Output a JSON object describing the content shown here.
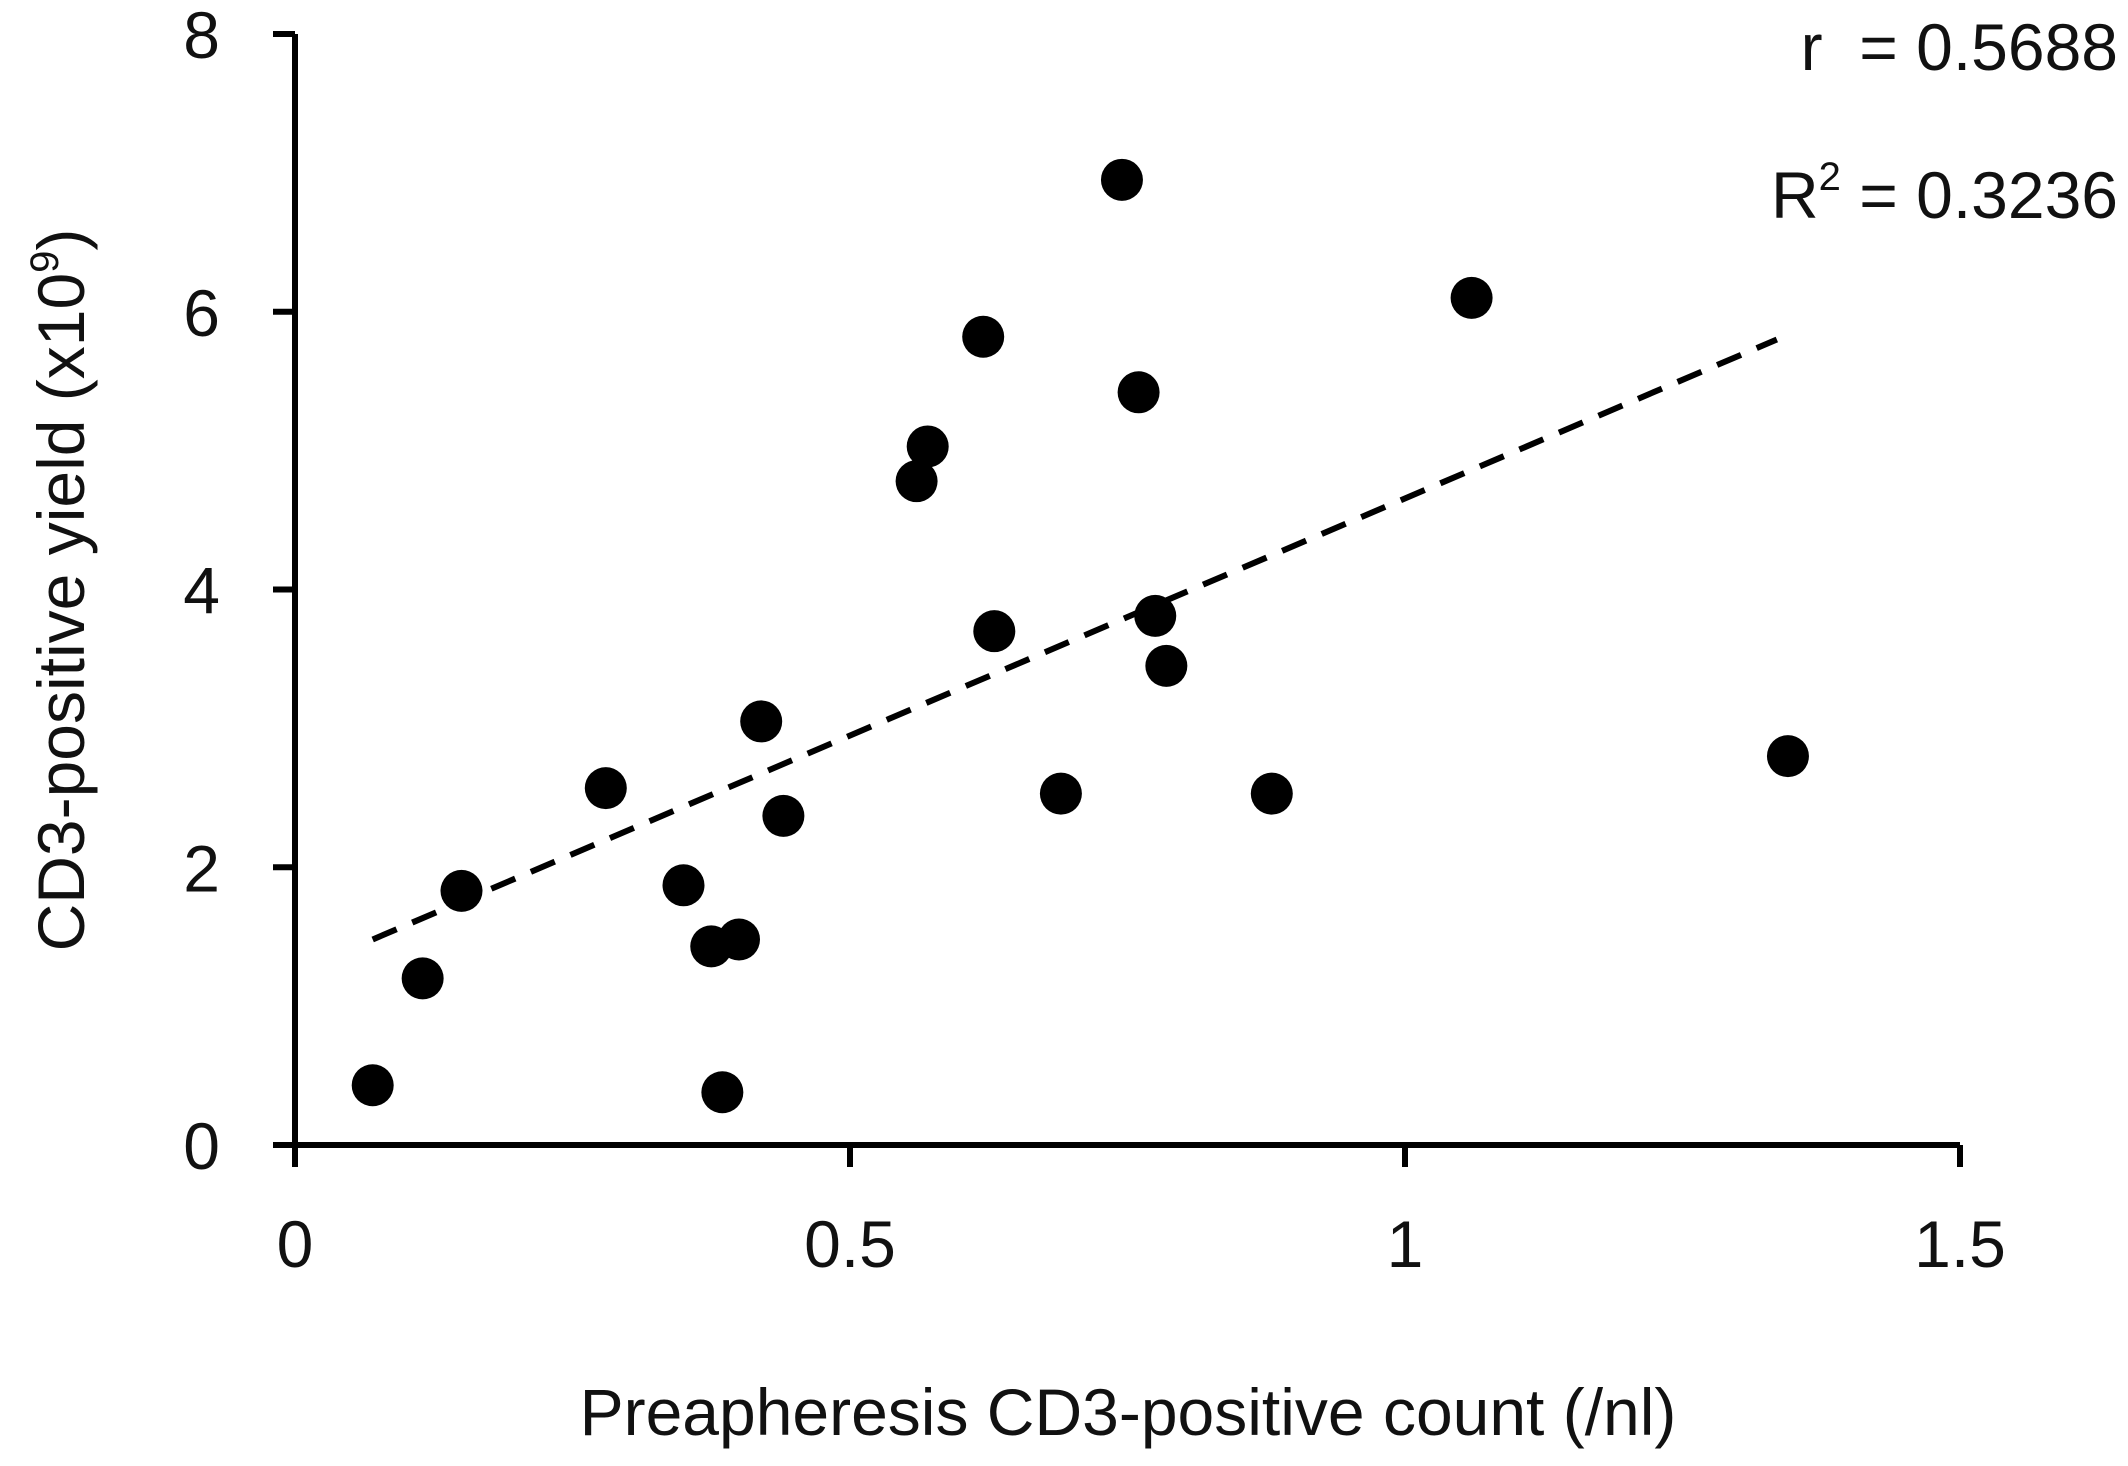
{
  "chart_data": {
    "type": "scatter",
    "xlabel": "Preapheresis CD3-positive count (/nl)",
    "ylabel": {
      "text": "CD3-positive yield (x10",
      "sup": "9",
      "close": ")"
    },
    "xlim": [
      0,
      1.5
    ],
    "ylim": [
      0,
      8
    ],
    "x_ticks": [
      {
        "value": 0,
        "label": "0"
      },
      {
        "value": 0.5,
        "label": "0.5"
      },
      {
        "value": 1,
        "label": "1"
      },
      {
        "value": 1.5,
        "label": "1.5"
      }
    ],
    "y_ticks": [
      {
        "value": 0,
        "label": "0"
      },
      {
        "value": 2,
        "label": "2"
      },
      {
        "value": 4,
        "label": "4"
      },
      {
        "value": 6,
        "label": "6"
      },
      {
        "value": 8,
        "label": "8"
      }
    ],
    "points": [
      {
        "x": 0.07,
        "y": 0.43
      },
      {
        "x": 0.115,
        "y": 1.2
      },
      {
        "x": 0.15,
        "y": 1.83
      },
      {
        "x": 0.28,
        "y": 2.57
      },
      {
        "x": 0.35,
        "y": 1.87
      },
      {
        "x": 0.375,
        "y": 1.43
      },
      {
        "x": 0.385,
        "y": 0.38
      },
      {
        "x": 0.4,
        "y": 1.48
      },
      {
        "x": 0.42,
        "y": 3.05
      },
      {
        "x": 0.44,
        "y": 2.37
      },
      {
        "x": 0.56,
        "y": 4.78
      },
      {
        "x": 0.57,
        "y": 5.03
      },
      {
        "x": 0.62,
        "y": 5.82
      },
      {
        "x": 0.63,
        "y": 3.7
      },
      {
        "x": 0.69,
        "y": 2.53
      },
      {
        "x": 0.745,
        "y": 6.95
      },
      {
        "x": 0.76,
        "y": 5.42
      },
      {
        "x": 0.775,
        "y": 3.81
      },
      {
        "x": 0.785,
        "y": 3.45
      },
      {
        "x": 0.88,
        "y": 2.53
      },
      {
        "x": 1.06,
        "y": 6.1
      },
      {
        "x": 1.345,
        "y": 2.8
      }
    ],
    "trendline": {
      "style": "dashed",
      "x": [
        0.07,
        1.335
      ],
      "y": [
        1.48,
        5.8
      ]
    },
    "annotations": {
      "r": {
        "label": "r  = 0.5688"
      },
      "r2": {
        "prefix": "R",
        "sup": "2",
        "rest": " = 0.3236"
      }
    },
    "marker_color": "#000000",
    "grid": false
  }
}
